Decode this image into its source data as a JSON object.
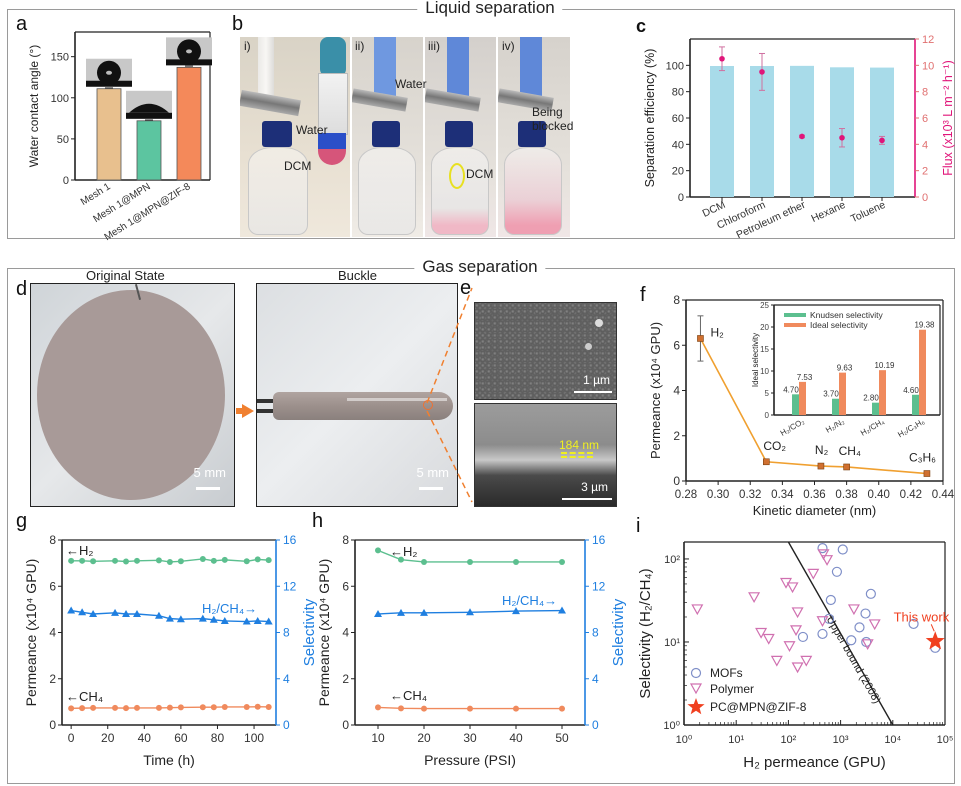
{
  "sections": {
    "liquid": {
      "title": "Liquid separation"
    },
    "gas": {
      "title": "Gas separation"
    }
  },
  "panels": {
    "a": {
      "letter": "a"
    },
    "b": {
      "letter": "b",
      "photos": [
        {
          "tag": "i)",
          "labels": [
            "Water",
            "DCM"
          ]
        },
        {
          "tag": "ii)",
          "labels": [
            "Water"
          ]
        },
        {
          "tag": "iii)",
          "labels": [
            "DCM"
          ]
        },
        {
          "tag": "iv)",
          "labels": [
            "Being",
            "blocked"
          ]
        }
      ]
    },
    "c": {
      "letter": "c"
    },
    "d": {
      "letter": "d",
      "left_title": "Original State",
      "right_title": "Buckle",
      "scale_left": "5 mm",
      "scale_right": "5 mm"
    },
    "e": {
      "letter": "e",
      "scale_top": "1 µm",
      "scale_bottom": "3 µm",
      "thickness": "184 nm"
    },
    "f": {
      "letter": "f"
    },
    "g": {
      "letter": "g"
    },
    "h": {
      "letter": "h"
    },
    "i": {
      "letter": "i"
    }
  },
  "colors": {
    "tan": "#e8c08e",
    "teal": "#5cc5a0",
    "orange": "#f4895a",
    "lightblue": "#a8dbe9",
    "magenta": "#e0157a",
    "green": "#5cbf8f",
    "blue": "#1f7fe0",
    "salmon": "#f08a5d",
    "line_orange": "#f0a030",
    "mof": "#7f8fc8",
    "polymer": "#d070b0",
    "star": "#f04020"
  },
  "chart_data": [
    {
      "id": "a",
      "type": "bar",
      "title": "",
      "ylabel": "Water contact angle (°)",
      "ylim": [
        0,
        180
      ],
      "yticks": [
        0,
        50,
        100,
        150
      ],
      "categories": [
        "Mesh 1",
        "Mesh 1@MPN",
        "Mesh 1@MPN@ZIF-8"
      ],
      "values": [
        111,
        72,
        137
      ],
      "errors": [
        1,
        1,
        1.5
      ]
    },
    {
      "id": "c",
      "type": "bar",
      "ylabel": "Separation efficiency (%)",
      "y2label": "Flux (x10³ L m⁻² h⁻¹)",
      "ylim": [
        0,
        120
      ],
      "yticks": [
        0,
        20,
        40,
        60,
        80,
        100
      ],
      "y2lim": [
        0,
        12
      ],
      "y2ticks": [
        0,
        2,
        4,
        6,
        8,
        10,
        12
      ],
      "categories": [
        "DCM",
        "Chloroform",
        "Petroleum ether",
        "Hexane",
        "Toluene"
      ],
      "efficiency": [
        99.5,
        99.5,
        99.6,
        98.5,
        98.3
      ],
      "flux": [
        10.5,
        9.5,
        4.6,
        4.5,
        4.3
      ],
      "flux_errors": [
        0.9,
        1.4,
        0.1,
        0.7,
        0.3
      ]
    },
    {
      "id": "f",
      "type": "line",
      "xlabel": "Kinetic diameter (nm)",
      "ylabel": "Permeance (x10⁴ GPU)",
      "xlim": [
        0.28,
        0.44
      ],
      "xticks": [
        0.28,
        0.3,
        0.32,
        0.34,
        0.36,
        0.38,
        0.4,
        0.42,
        0.44
      ],
      "ylim": [
        0,
        8
      ],
      "yticks": [
        0,
        2,
        4,
        6,
        8
      ],
      "points": [
        {
          "gas": "H₂",
          "x": 0.289,
          "y": 6.3,
          "err": 1.0
        },
        {
          "gas": "CO₂",
          "x": 0.33,
          "y": 0.85,
          "err": 0.1
        },
        {
          "gas": "N₂",
          "x": 0.364,
          "y": 0.66,
          "err": 0.05
        },
        {
          "gas": "CH₄",
          "x": 0.38,
          "y": 0.62,
          "err": 0.05
        },
        {
          "gas": "C₃H₆",
          "x": 0.43,
          "y": 0.33,
          "err": 0.03
        }
      ],
      "inset": {
        "type": "bar",
        "ylabel": "Ideal selectivity",
        "ylim": [
          0,
          25
        ],
        "yticks": [
          0,
          5,
          10,
          15,
          20,
          25
        ],
        "categories": [
          "H₂/CO₂",
          "H₂/N₂",
          "H₂/CH₄",
          "H₂/C₃H₆"
        ],
        "series": [
          {
            "name": "Knudsen selectivity",
            "values": [
              4.7,
              3.7,
              2.8,
              4.6
            ],
            "labels": [
              "4.70",
              "3.70",
              "2.80",
              "4.60"
            ]
          },
          {
            "name": "Ideal selectivity",
            "values": [
              7.53,
              9.63,
              10.19,
              19.38
            ],
            "labels": [
              "7.53",
              "9.63",
              "10.19",
              "19.38"
            ]
          }
        ],
        "legend": "top-left"
      }
    },
    {
      "id": "g",
      "type": "line",
      "xlabel": "Time (h)",
      "ylabel": "Permeance (x10⁴ GPU)",
      "y2label": "Selectivity",
      "xlim": [
        -5,
        112
      ],
      "xticks": [
        0,
        20,
        40,
        60,
        80,
        100
      ],
      "ylim": [
        0,
        8
      ],
      "yticks": [
        0,
        2,
        4,
        6,
        8
      ],
      "y2lim": [
        0,
        16
      ],
      "y2ticks": [
        0,
        4,
        8,
        12,
        16
      ],
      "x": [
        0,
        6,
        12,
        24,
        30,
        36,
        48,
        54,
        60,
        72,
        78,
        84,
        96,
        102,
        108
      ],
      "series": [
        {
          "name": "H₂",
          "axis": "left",
          "annotation": "←H₂",
          "values": [
            7.1,
            7.1,
            7.08,
            7.1,
            7.07,
            7.1,
            7.12,
            7.05,
            7.08,
            7.18,
            7.1,
            7.14,
            7.08,
            7.16,
            7.13
          ]
        },
        {
          "name": "CH₄",
          "axis": "left",
          "annotation": "←CH₄",
          "values": [
            0.72,
            0.73,
            0.74,
            0.74,
            0.73,
            0.74,
            0.74,
            0.75,
            0.76,
            0.77,
            0.77,
            0.78,
            0.78,
            0.79,
            0.78
          ]
        },
        {
          "name": "H₂/CH₄",
          "axis": "right",
          "annotation": "H₂/CH₄→",
          "values": [
            9.9,
            9.75,
            9.6,
            9.7,
            9.6,
            9.6,
            9.45,
            9.2,
            9.15,
            9.2,
            9.1,
            9.0,
            8.95,
            9.0,
            8.95
          ]
        }
      ]
    },
    {
      "id": "h",
      "type": "line",
      "xlabel": "Pressure (PSI)",
      "ylabel": "Permeance (x10⁴ GPU)",
      "y2label": "Selectivity",
      "xlim": [
        5,
        55
      ],
      "xticks": [
        10,
        20,
        30,
        40,
        50
      ],
      "ylim": [
        0,
        8
      ],
      "yticks": [
        0,
        2,
        4,
        6,
        8
      ],
      "y2lim": [
        0,
        16
      ],
      "y2ticks": [
        0,
        4,
        8,
        12,
        16
      ],
      "x": [
        10,
        15,
        20,
        30,
        40,
        50
      ],
      "series": [
        {
          "name": "H₂",
          "axis": "left",
          "annotation": "←H₂",
          "values": [
            7.55,
            7.15,
            7.05,
            7.05,
            7.05,
            7.05
          ]
        },
        {
          "name": "CH₄",
          "axis": "left",
          "annotation": "←CH₄",
          "values": [
            0.76,
            0.72,
            0.71,
            0.71,
            0.71,
            0.71
          ]
        },
        {
          "name": "H₂/CH₄",
          "axis": "right",
          "annotation": "H₂/CH₄→",
          "values": [
            9.6,
            9.7,
            9.7,
            9.75,
            9.85,
            9.9
          ]
        }
      ]
    },
    {
      "id": "i",
      "type": "scatter",
      "xlabel": "H₂ permeance (GPU)",
      "ylabel": "Selectivity (H₂/CH₄)",
      "xscale": "log",
      "yscale": "log",
      "xlim": [
        1,
        100000
      ],
      "ylim": [
        1,
        160
      ],
      "xticks": [
        "10⁰",
        "10¹",
        "10²",
        "10³",
        "10⁴",
        "10⁵"
      ],
      "yticks": [
        "10⁰",
        "10¹",
        "10²"
      ],
      "upper_bound": {
        "label": "Upper bound (2008)",
        "points": [
          [
            100,
            160
          ],
          [
            10000,
            1
          ]
        ]
      },
      "annotation": "This work",
      "series": [
        {
          "name": "MOFs",
          "marker": "circle",
          "points": [
            [
              450,
              135
            ],
            [
              1100,
              130
            ],
            [
              850,
              70
            ],
            [
              650,
              32
            ],
            [
              3800,
              38
            ],
            [
              600,
              19
            ],
            [
              450,
              12.5
            ],
            [
              190,
              11.5
            ],
            [
              1600,
              10.5
            ],
            [
              2300,
              15
            ],
            [
              3000,
              22
            ],
            [
              3100,
              10
            ],
            [
              25000,
              16.5
            ],
            [
              65000,
              8.5
            ]
          ]
        },
        {
          "name": "Polymer",
          "marker": "triangle-down",
          "points": [
            [
              1.8,
              25
            ],
            [
              22,
              35
            ],
            [
              90,
              52
            ],
            [
              120,
              46
            ],
            [
              300,
              67
            ],
            [
              470,
              115
            ],
            [
              550,
              98
            ],
            [
              150,
              23
            ],
            [
              140,
              14
            ],
            [
              30,
              13
            ],
            [
              42,
              11
            ],
            [
              105,
              9
            ],
            [
              60,
              6
            ],
            [
              150,
              5
            ],
            [
              220,
              6
            ],
            [
              450,
              18
            ],
            [
              1800,
              25
            ],
            [
              3300,
              9.5
            ],
            [
              4500,
              16.5
            ]
          ]
        },
        {
          "name": "PC@MPN@ZIF-8",
          "marker": "star",
          "points": [
            [
              65000,
              10.2
            ]
          ]
        }
      ],
      "legend": "bottom-left"
    }
  ]
}
